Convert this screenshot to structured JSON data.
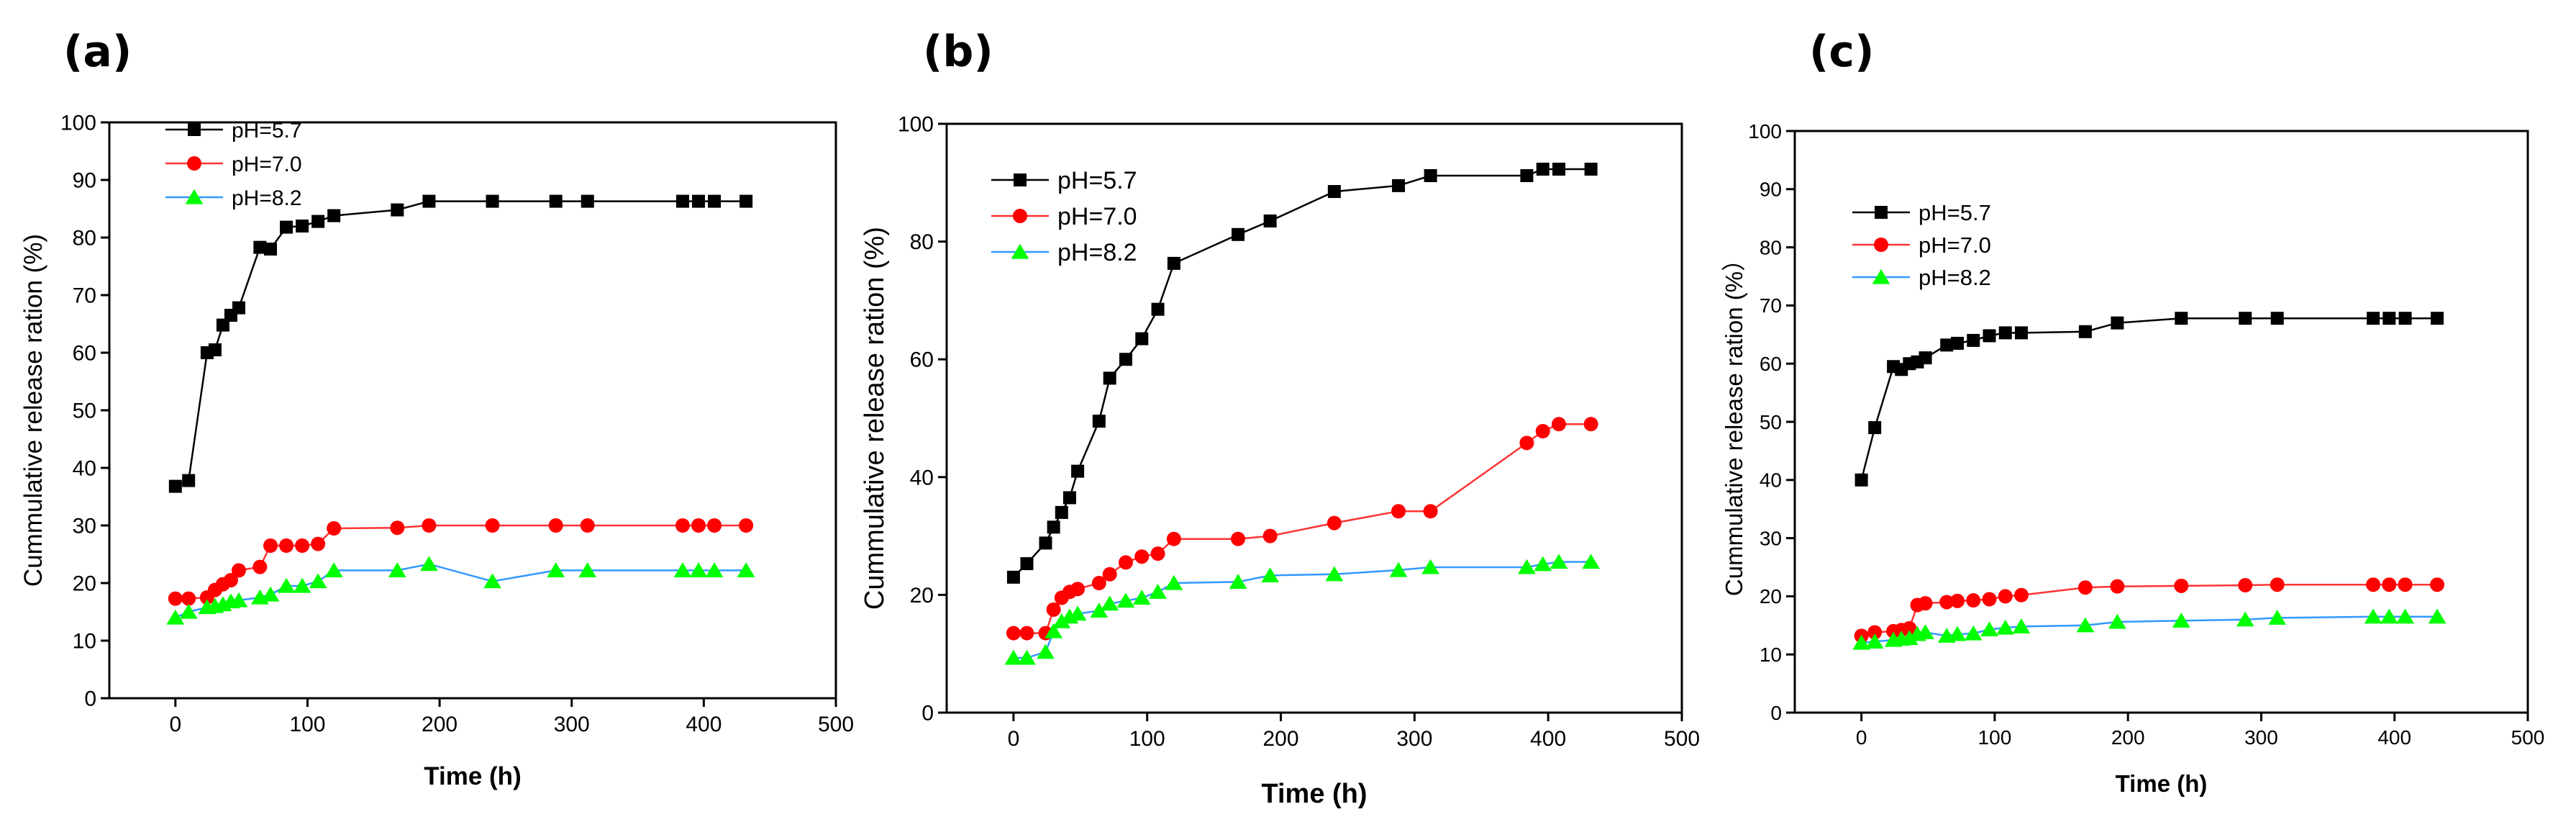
{
  "figure": {
    "panels": [
      {
        "letter": "(a)"
      },
      {
        "letter": "(b)"
      },
      {
        "letter": "(c)"
      }
    ]
  },
  "series_styles": [
    {
      "name": "pH=5.7",
      "line_color": "#000000",
      "marker_color": "#000000",
      "marker": "square"
    },
    {
      "name": "pH=7.0",
      "line_color": "#ff3333",
      "marker_color": "#ff0000",
      "marker": "circle"
    },
    {
      "name": "pH=8.2",
      "line_color": "#3399ff",
      "marker_color": "#00ff00",
      "marker": "triangle"
    }
  ],
  "chart_data": [
    {
      "panel": "(a)",
      "type": "line",
      "xlabel": "Time (h)",
      "ylabel": "Cummulative release ration (%)",
      "xlim": [
        -50,
        500
      ],
      "ylim": [
        0,
        100
      ],
      "xticks": [
        0,
        100,
        200,
        300,
        400,
        500
      ],
      "yticks": [
        0,
        10,
        20,
        30,
        40,
        50,
        60,
        70,
        80,
        90,
        100
      ],
      "legend": "top-left",
      "grid": false,
      "series": [
        {
          "name": "pH=5.7",
          "x": [
            0,
            10,
            24,
            30,
            36,
            42,
            48,
            64,
            72,
            84,
            96,
            108,
            120,
            168,
            192,
            240,
            288,
            312,
            384,
            396,
            408,
            432
          ],
          "values": [
            36.8,
            37.8,
            60,
            60.5,
            64.8,
            66.5,
            67.8,
            78.3,
            78,
            81.8,
            82,
            82.8,
            83.8,
            84.8,
            86.3,
            86.3,
            86.3,
            86.3,
            86.3,
            86.3,
            86.3,
            86.3
          ]
        },
        {
          "name": "pH=7.0",
          "x": [
            0,
            10,
            24,
            30,
            36,
            42,
            48,
            64,
            72,
            84,
            96,
            108,
            120,
            168,
            192,
            240,
            288,
            312,
            384,
            396,
            408,
            432
          ],
          "values": [
            17.3,
            17.3,
            17.5,
            18.8,
            19.8,
            20.5,
            22.2,
            22.8,
            26.5,
            26.5,
            26.5,
            26.8,
            29.5,
            29.6,
            30,
            30,
            30,
            30,
            30,
            30,
            30,
            30
          ]
        },
        {
          "name": "pH=8.2",
          "x": [
            0,
            10,
            24,
            30,
            36,
            42,
            48,
            64,
            72,
            84,
            96,
            108,
            120,
            168,
            192,
            240,
            288,
            312,
            384,
            396,
            408,
            432
          ],
          "values": [
            14,
            15,
            15.8,
            16,
            16.3,
            16.8,
            17,
            17.5,
            18,
            19.5,
            19.5,
            20.3,
            22.2,
            22.2,
            23.3,
            20.3,
            22.2,
            22.2,
            22.2,
            22.2,
            22.2,
            22.2
          ]
        }
      ]
    },
    {
      "panel": "(b)",
      "type": "line",
      "xlabel": "Time (h)",
      "ylabel": "Cummulative release ration (%)",
      "xlim": [
        -50,
        500
      ],
      "ylim": [
        0,
        100
      ],
      "xticks": [
        0,
        100,
        200,
        300,
        400,
        500
      ],
      "yticks": [
        0,
        20,
        40,
        60,
        80,
        100
      ],
      "legend": "top-left",
      "grid": false,
      "series": [
        {
          "name": "pH=5.7",
          "x": [
            0,
            10,
            24,
            30,
            36,
            42,
            48,
            64,
            72,
            84,
            96,
            108,
            120,
            168,
            192,
            240,
            288,
            312,
            384,
            396,
            408,
            432
          ],
          "values": [
            23,
            25.3,
            28.8,
            31.5,
            34,
            36.5,
            41,
            49.5,
            56.8,
            60,
            63.5,
            68.5,
            76.3,
            81.2,
            83.5,
            88.5,
            89.5,
            91.2,
            91.2,
            92.3,
            92.3,
            92.3
          ]
        },
        {
          "name": "pH=7.0",
          "x": [
            0,
            10,
            24,
            30,
            36,
            42,
            48,
            64,
            72,
            84,
            96,
            108,
            120,
            168,
            192,
            240,
            288,
            312,
            384,
            396,
            408,
            432
          ],
          "values": [
            13.5,
            13.5,
            13.5,
            17.5,
            19.5,
            20.5,
            21,
            22,
            23.5,
            25.5,
            26.5,
            27,
            29.5,
            29.5,
            30,
            32.2,
            34.2,
            34.2,
            45.8,
            47.8,
            49,
            49
          ]
        },
        {
          "name": "pH=8.2",
          "x": [
            0,
            10,
            24,
            30,
            36,
            42,
            48,
            64,
            72,
            84,
            96,
            108,
            120,
            168,
            192,
            240,
            288,
            312,
            384,
            396,
            408,
            432
          ],
          "values": [
            9.3,
            9.3,
            10.3,
            13.8,
            15.5,
            16.3,
            16.8,
            17.3,
            18.5,
            19,
            19.5,
            20.5,
            22,
            22.2,
            23.3,
            23.5,
            24.2,
            24.7,
            24.7,
            25.2,
            25.6,
            25.6
          ]
        }
      ]
    },
    {
      "panel": "(c)",
      "type": "line",
      "xlabel": "Time (h)",
      "ylabel": "Cummulative release ration (%）",
      "xlim": [
        -50,
        500
      ],
      "ylim": [
        0,
        100
      ],
      "xticks": [
        0,
        100,
        200,
        300,
        400,
        500
      ],
      "yticks": [
        0,
        10,
        20,
        30,
        40,
        50,
        60,
        70,
        80,
        90,
        100
      ],
      "legend": "top-left",
      "grid": false,
      "series": [
        {
          "name": "pH=5.7",
          "x": [
            0,
            10,
            24,
            30,
            36,
            42,
            48,
            64,
            72,
            84,
            96,
            108,
            120,
            168,
            192,
            240,
            288,
            312,
            384,
            396,
            408,
            432
          ],
          "values": [
            40,
            49,
            59.5,
            59,
            60,
            60.3,
            61,
            63.2,
            63.5,
            64,
            64.8,
            65.3,
            65.3,
            65.5,
            67,
            67.8,
            67.8,
            67.8,
            67.8,
            67.8,
            67.8,
            67.8
          ]
        },
        {
          "name": "pH=7.0",
          "x": [
            0,
            10,
            24,
            30,
            36,
            42,
            48,
            64,
            72,
            84,
            96,
            108,
            120,
            168,
            192,
            240,
            288,
            312,
            384,
            396,
            408,
            432
          ],
          "values": [
            13.2,
            13.8,
            14,
            14.2,
            14.5,
            18.5,
            18.8,
            19,
            19.2,
            19.3,
            19.5,
            20,
            20.2,
            21.5,
            21.7,
            21.8,
            21.9,
            22,
            22,
            22,
            22,
            22
          ]
        },
        {
          "name": "pH=8.2",
          "x": [
            0,
            10,
            24,
            30,
            36,
            42,
            48,
            64,
            72,
            84,
            96,
            108,
            120,
            168,
            192,
            240,
            288,
            312,
            384,
            396,
            408,
            432
          ],
          "values": [
            12,
            12.2,
            12.5,
            12.7,
            12.8,
            13.5,
            13.8,
            13.2,
            13.5,
            13.6,
            14.3,
            14.6,
            14.8,
            15,
            15.6,
            15.8,
            16,
            16.3,
            16.5,
            16.5,
            16.5,
            16.5
          ]
        }
      ]
    }
  ]
}
